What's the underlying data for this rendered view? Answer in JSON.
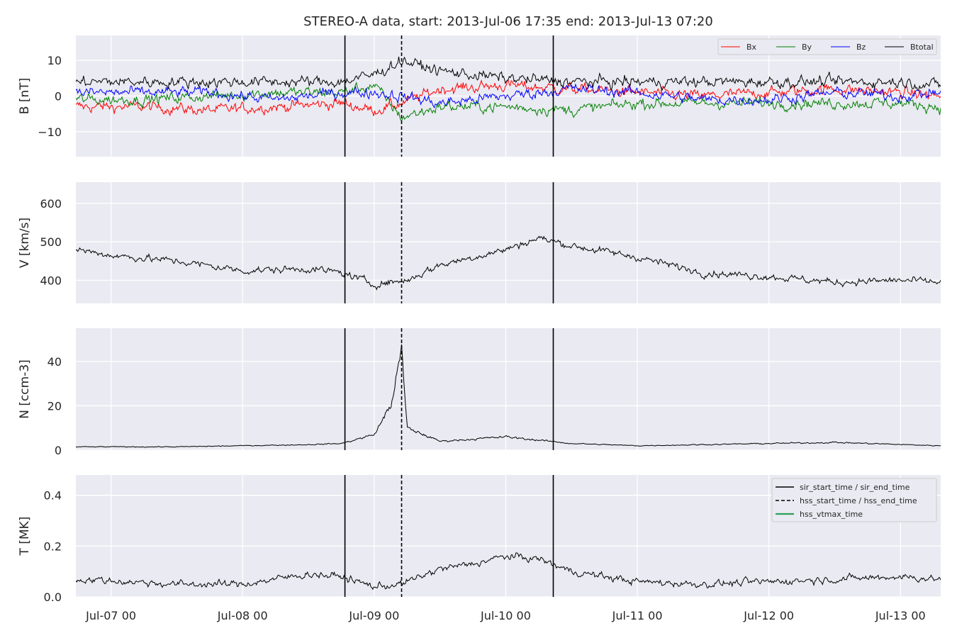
{
  "figure": {
    "title": "STEREO-A data, start: 2013-Jul-06 17:35  end: 2013-Jul-13 07:20",
    "x_ticks": [
      "Jul-07 00",
      "Jul-08 00",
      "Jul-09 00",
      "Jul-10 00",
      "Jul-11 00",
      "Jul-12 00",
      "Jul-13 00"
    ]
  },
  "colors": {
    "bx": "#ff0000",
    "by": "#008000",
    "bz": "#0000ff",
    "btotal": "#000000",
    "panel_bg": "#eaeaf2",
    "grid": "#ffffff",
    "hss_vtmax": "#2ca05a"
  },
  "chart_data": [
    {
      "type": "line",
      "ylabel": "B [nT]",
      "xlim": [
        "2013-07-06 17:35",
        "2013-07-13 07:20"
      ],
      "ylim": [
        -17,
        17
      ],
      "yticks": [
        -10,
        0,
        10
      ],
      "ytick_labels": [
        "−10",
        "0",
        "10"
      ],
      "grid": true,
      "legend": "top-right",
      "x": [
        "2013-07-06 18:00",
        "2013-07-07 06:00",
        "2013-07-07 18:00",
        "2013-07-08 06:00",
        "2013-07-08 18:00",
        "2013-07-09 00:00",
        "2013-07-09 05:00",
        "2013-07-09 12:00",
        "2013-07-10 00:00",
        "2013-07-10 12:00",
        "2013-07-11 00:00",
        "2013-07-11 12:00",
        "2013-07-12 00:00",
        "2013-07-12 12:00",
        "2013-07-13 00:00",
        "2013-07-13 07:00"
      ],
      "series": [
        {
          "name": "Bx",
          "values": [
            -3,
            -3,
            -4,
            -3,
            -2,
            -4,
            -2,
            2,
            3,
            2,
            1,
            0,
            1,
            2,
            1,
            0
          ]
        },
        {
          "name": "By",
          "values": [
            -1,
            -1,
            0,
            1,
            1,
            3,
            -6,
            -3,
            -3,
            -4,
            -2,
            -2,
            -2,
            -2,
            -2,
            -3
          ]
        },
        {
          "name": "Bz",
          "values": [
            1,
            1,
            1,
            -1,
            1,
            1,
            0,
            -2,
            0,
            2,
            1,
            -1,
            -1,
            1,
            0,
            1
          ]
        },
        {
          "name": "Btotal",
          "values": [
            4,
            4,
            4,
            4,
            4,
            6,
            10,
            7,
            5,
            4,
            4,
            4,
            4,
            4,
            4,
            3
          ]
        }
      ]
    },
    {
      "type": "line",
      "ylabel": "V [km/s]",
      "xlim": [
        "2013-07-06 17:35",
        "2013-07-13 07:20"
      ],
      "ylim": [
        340,
        655
      ],
      "yticks": [
        400,
        500,
        600
      ],
      "ytick_labels": [
        "400",
        "500",
        "600"
      ],
      "grid": true,
      "x": [
        "2013-07-06 18:00",
        "2013-07-07 00:00",
        "2013-07-07 12:00",
        "2013-07-08 00:00",
        "2013-07-08 12:00",
        "2013-07-08 18:00",
        "2013-07-09 00:00",
        "2013-07-09 06:00",
        "2013-07-09 12:00",
        "2013-07-10 00:00",
        "2013-07-10 06:00",
        "2013-07-10 12:00",
        "2013-07-11 00:00",
        "2013-07-11 12:00",
        "2013-07-12 00:00",
        "2013-07-12 12:00",
        "2013-07-13 00:00",
        "2013-07-13 07:00"
      ],
      "series": [
        {
          "name": "",
          "values": [
            480,
            465,
            450,
            425,
            430,
            420,
            390,
            400,
            440,
            480,
            510,
            490,
            460,
            420,
            410,
            395,
            400,
            395
          ]
        }
      ]
    },
    {
      "type": "line",
      "ylabel": "N [ccm-3]",
      "xlim": [
        "2013-07-06 17:35",
        "2013-07-13 07:20"
      ],
      "ylim": [
        0,
        55
      ],
      "yticks": [
        0,
        20,
        40
      ],
      "ytick_labels": [
        "0",
        "20",
        "40"
      ],
      "grid": true,
      "x": [
        "2013-07-06 18:00",
        "2013-07-07 12:00",
        "2013-07-08 00:00",
        "2013-07-08 12:00",
        "2013-07-08 18:00",
        "2013-07-09 00:00",
        "2013-07-09 03:00",
        "2013-07-09 05:00",
        "2013-07-09 06:00",
        "2013-07-09 12:00",
        "2013-07-10 00:00",
        "2013-07-10 12:00",
        "2013-07-11 00:00",
        "2013-07-12 00:00",
        "2013-07-12 12:00",
        "2013-07-13 07:00"
      ],
      "series": [
        {
          "name": "",
          "values": [
            1.5,
            1.5,
            2,
            2.5,
            3,
            7,
            20,
            45,
            10,
            4,
            6,
            3,
            2,
            3,
            3.5,
            2
          ]
        }
      ]
    },
    {
      "type": "line",
      "ylabel": "T [MK]",
      "xlim": [
        "2013-07-06 17:35",
        "2013-07-13 07:20"
      ],
      "ylim": [
        0,
        0.48
      ],
      "yticks": [
        0.0,
        0.2,
        0.4
      ],
      "ytick_labels": [
        "0.0",
        "0.2",
        "0.4"
      ],
      "grid": true,
      "legend": "top-right",
      "x": [
        "2013-07-06 18:00",
        "2013-07-07 12:00",
        "2013-07-08 00:00",
        "2013-07-08 12:00",
        "2013-07-08 18:00",
        "2013-07-09 00:00",
        "2013-07-09 05:00",
        "2013-07-09 12:00",
        "2013-07-09 18:00",
        "2013-07-10 00:00",
        "2013-07-10 06:00",
        "2013-07-10 12:00",
        "2013-07-11 00:00",
        "2013-07-11 12:00",
        "2013-07-12 00:00",
        "2013-07-12 12:00",
        "2013-07-13 00:00",
        "2013-07-13 07:00"
      ],
      "series": [
        {
          "name": "",
          "values": [
            0.07,
            0.05,
            0.05,
            0.09,
            0.08,
            0.04,
            0.05,
            0.11,
            0.13,
            0.16,
            0.15,
            0.1,
            0.06,
            0.05,
            0.06,
            0.07,
            0.08,
            0.07
          ]
        }
      ],
      "legend_entries": [
        {
          "label": "sir_start_time / sir_end_time",
          "style": "solid"
        },
        {
          "label": "hss_start_time / hss_end_time",
          "style": "dashed"
        },
        {
          "label": "hss_vtmax_time",
          "style": "green"
        }
      ]
    }
  ],
  "events": {
    "sir_start_time": "2013-07-08 18:40",
    "sir_end_time": "2013-07-10 08:40",
    "hss_start_time": "2013-07-09 05:00"
  }
}
